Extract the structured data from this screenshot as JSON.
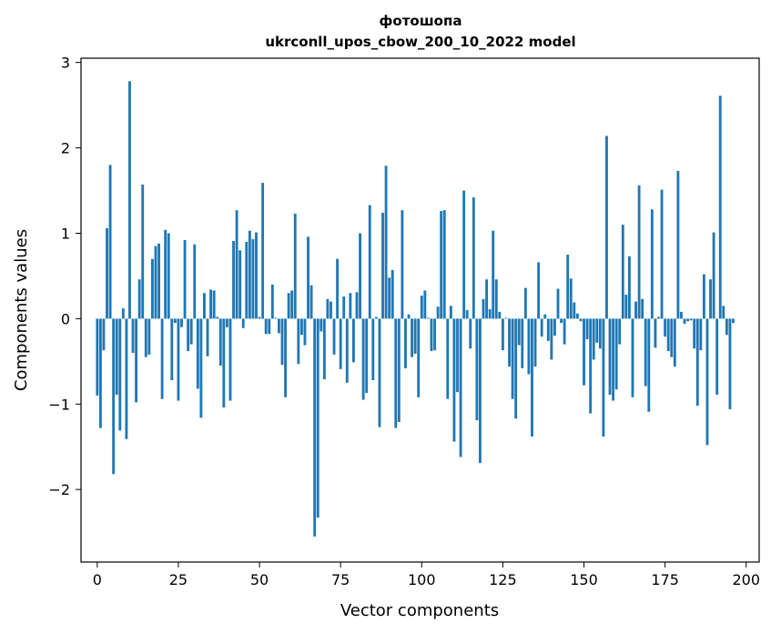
{
  "chart_data": {
    "type": "bar",
    "title_line1": "фотошопа",
    "title_line2": "ukrconll_upos_cbow_200_10_2022 model",
    "xlabel": "Vector components",
    "ylabel": "Components values",
    "xlim": [
      -5,
      204
    ],
    "ylim": [
      -2.85,
      3.05
    ],
    "xticks": [
      0,
      25,
      50,
      75,
      100,
      125,
      150,
      175,
      200
    ],
    "yticks": [
      -2,
      -1,
      0,
      1,
      2,
      3
    ],
    "bar_color": "#1f77b4",
    "grid": false,
    "values": [
      -0.9,
      -1.28,
      -0.37,
      1.06,
      1.8,
      -1.82,
      -0.89,
      -1.31,
      0.12,
      -1.41,
      2.78,
      -0.4,
      -0.98,
      0.46,
      1.57,
      -0.45,
      -0.42,
      0.7,
      0.85,
      0.88,
      -0.94,
      1.04,
      1.0,
      -0.72,
      -0.05,
      -0.96,
      -0.1,
      0.92,
      -0.38,
      -0.3,
      0.87,
      -0.82,
      -1.16,
      0.3,
      -0.44,
      0.34,
      0.33,
      0.02,
      -0.55,
      -1.04,
      -0.1,
      -0.96,
      0.91,
      1.27,
      0.8,
      -0.11,
      0.9,
      1.03,
      0.93,
      1.01,
      0.02,
      1.59,
      -0.18,
      -0.18,
      0.4,
      0.01,
      -0.17,
      -0.54,
      -0.92,
      0.3,
      0.33,
      1.23,
      -0.53,
      -0.19,
      -0.31,
      0.96,
      0.39,
      -2.55,
      -2.33,
      -0.15,
      -0.71,
      0.23,
      0.2,
      -0.42,
      0.7,
      -0.59,
      0.26,
      -0.75,
      0.3,
      -0.51,
      0.31,
      1.0,
      -0.95,
      -0.87,
      1.33,
      -0.72,
      0.02,
      -1.27,
      1.24,
      1.79,
      0.48,
      0.57,
      -1.28,
      -1.21,
      1.27,
      -0.58,
      0.05,
      -0.45,
      -0.41,
      -0.92,
      0.27,
      0.33,
      0.01,
      -0.38,
      -0.37,
      0.14,
      1.26,
      1.27,
      -0.94,
      0.15,
      -1.44,
      -0.86,
      -1.62,
      1.5,
      0.1,
      -0.35,
      1.42,
      -1.19,
      -1.69,
      0.23,
      0.46,
      0.11,
      1.03,
      0.46,
      0.08,
      -0.37,
      0.01,
      -0.56,
      -0.94,
      -1.17,
      -0.31,
      -0.58,
      0.36,
      -0.65,
      -1.38,
      -0.56,
      0.66,
      -0.21,
      0.05,
      -0.26,
      -0.48,
      -0.2,
      0.35,
      -0.05,
      -0.3,
      0.75,
      0.47,
      0.19,
      0.06,
      -0.03,
      -0.78,
      -0.24,
      -1.11,
      -0.48,
      -0.28,
      -0.35,
      -1.38,
      2.14,
      -0.89,
      -0.96,
      -0.83,
      -0.3,
      1.1,
      0.28,
      0.73,
      -0.92,
      0.2,
      1.56,
      0.23,
      -0.79,
      -1.09,
      1.28,
      -0.34,
      0.02,
      1.51,
      -0.21,
      -0.38,
      -0.45,
      -0.56,
      1.73,
      0.08,
      -0.06,
      -0.03,
      -0.02,
      -0.35,
      -1.02,
      -0.37,
      0.52,
      -1.48,
      0.46,
      1.01,
      -0.89,
      2.61,
      0.15,
      -0.19,
      -1.06,
      -0.05
    ]
  }
}
